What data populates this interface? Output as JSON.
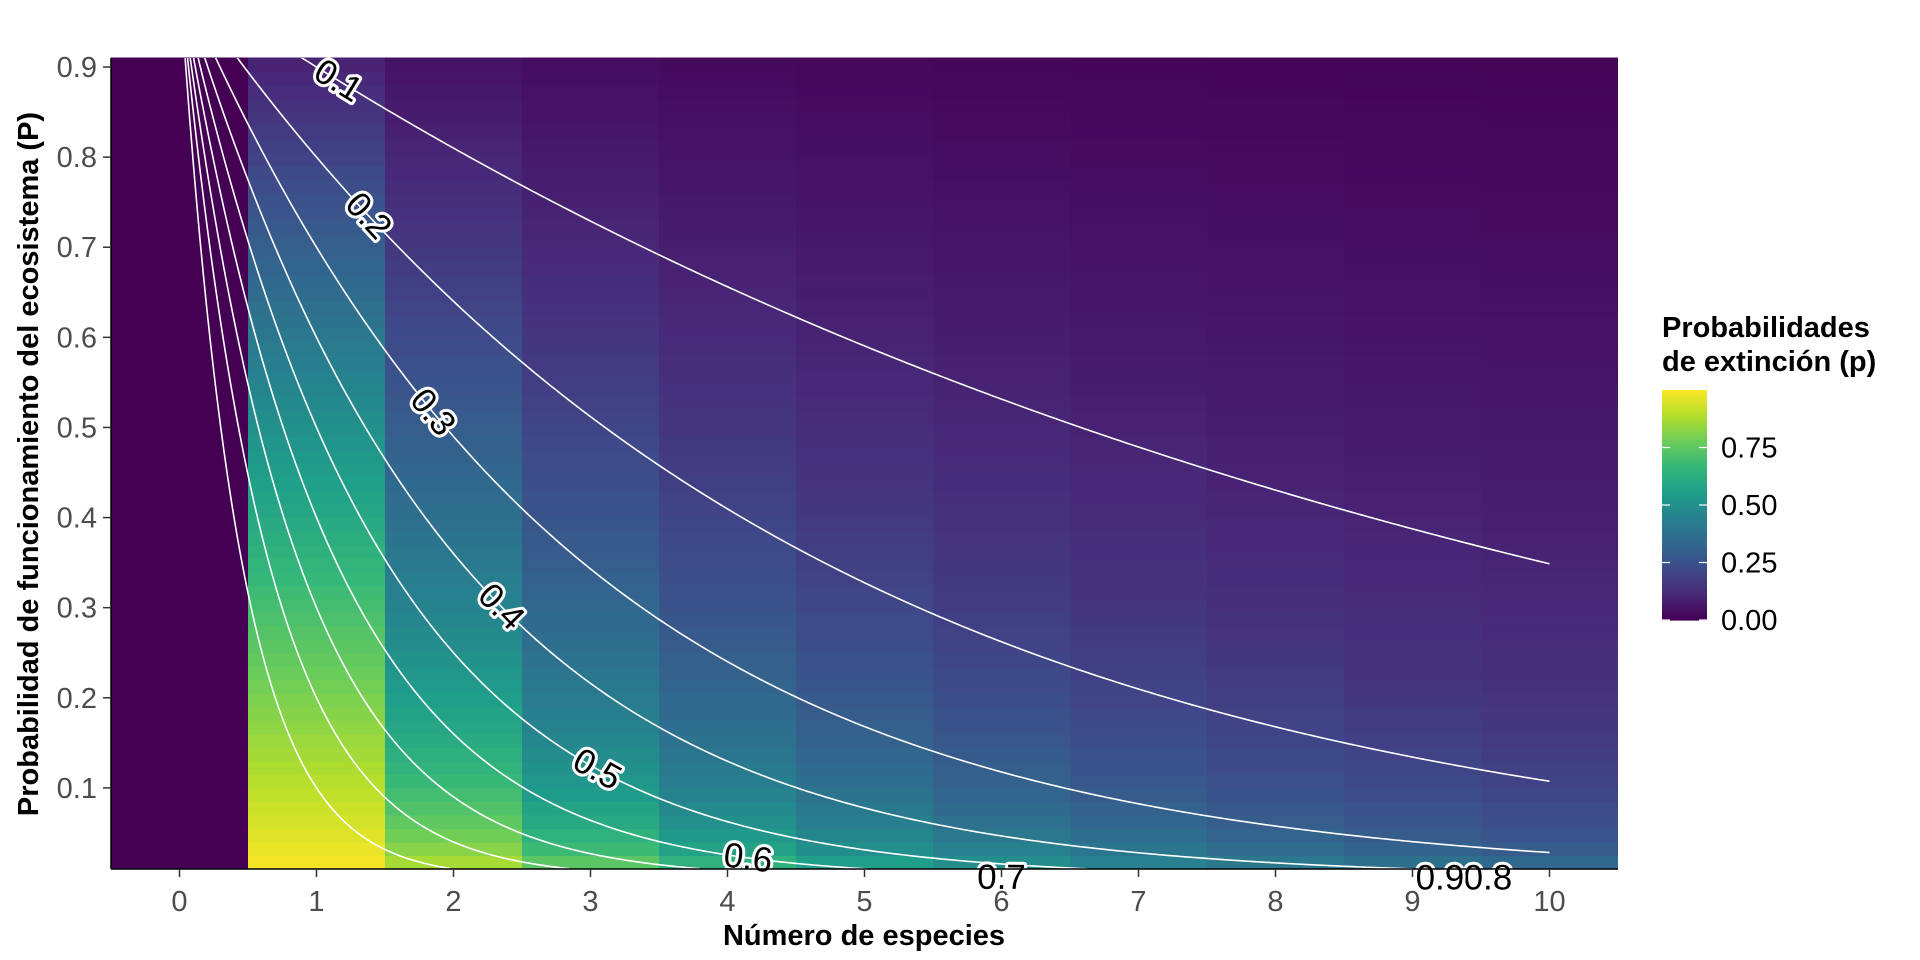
{
  "chart_data": {
    "type": "heatmap",
    "title": "",
    "xlabel": "Número de especies",
    "ylabel": "Probabilidad de funcionamiento del ecosistema (P)",
    "x_ticks": [
      "0",
      "1",
      "2",
      "3",
      "4",
      "5",
      "6",
      "7",
      "8",
      "9",
      "10"
    ],
    "y_ticks": [
      "0.1",
      "0.2",
      "0.3",
      "0.4",
      "0.5",
      "0.6",
      "0.7",
      "0.8",
      "0.9"
    ],
    "x_tick_values": [
      0,
      1,
      2,
      3,
      4,
      5,
      6,
      7,
      8,
      9,
      10
    ],
    "y_tick_values": [
      0.1,
      0.2,
      0.3,
      0.4,
      0.5,
      0.6,
      0.7,
      0.8,
      0.9
    ],
    "xlim": [
      -0.5,
      10.5
    ],
    "ylim": [
      0.01,
      0.91
    ],
    "grid": false,
    "fill_formula": "p = 1 - P^(1/N)",
    "colorscale": "viridis",
    "colorscale_stops": [
      "#440154",
      "#482878",
      "#3E4A89",
      "#31688E",
      "#26828E",
      "#1F9E89",
      "#35B779",
      "#6DCD59",
      "#B4DE2C",
      "#FDE725"
    ],
    "legend": {
      "title_lines": [
        "Probabilidades",
        "de extinción (p)"
      ],
      "labels": [
        "0.75",
        "0.50",
        "0.25",
        "0.00"
      ],
      "label_values": [
        0.75,
        0.5,
        0.25,
        0.0
      ],
      "range": [
        0.0,
        1.0
      ],
      "position": "right"
    },
    "contour_color": "#ffffff",
    "contours": [
      {
        "level": 0.1,
        "label": "0.1",
        "x": [
          1.0,
          1.1,
          1.2,
          1.3,
          1.5,
          1.75,
          2.0,
          2.25,
          2.5,
          2.75,
          3.0,
          3.25,
          3.5,
          3.75,
          4.0,
          4.5,
          5.0,
          6.0,
          7.0,
          8.0,
          9.0,
          10.0
        ]
      },
      {
        "level": 0.2,
        "label": "0.2"
      },
      {
        "level": 0.3,
        "label": "0.3"
      },
      {
        "level": 0.4,
        "label": "0.4"
      },
      {
        "level": 0.5,
        "label": "0.5"
      },
      {
        "level": 0.6,
        "label": "0.6"
      },
      {
        "level": 0.7,
        "label": "0.7"
      },
      {
        "level": 0.8,
        "label": "0.8"
      },
      {
        "level": 0.9,
        "label": "0.9"
      }
    ]
  }
}
